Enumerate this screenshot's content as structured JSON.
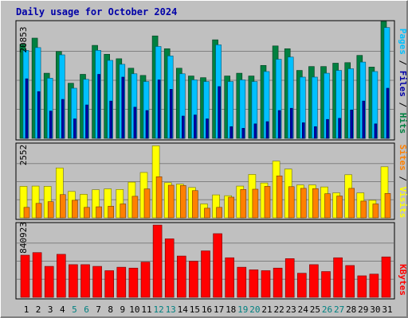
{
  "chart_data": {
    "type": "bar",
    "title": "Daily usage for October 2024",
    "categories": [
      "1",
      "2",
      "3",
      "4",
      "5",
      "6",
      "7",
      "8",
      "9",
      "10",
      "11",
      "12",
      "13",
      "14",
      "15",
      "16",
      "17",
      "18",
      "19",
      "20",
      "21",
      "22",
      "23",
      "24",
      "25",
      "26",
      "27",
      "28",
      "29",
      "30",
      "31"
    ],
    "weekend_days": [
      "5",
      "6",
      "12",
      "13",
      "19",
      "20",
      "26",
      "27"
    ],
    "colors": {
      "background": "#c0c0c0",
      "hits": "#008040",
      "files": "#00c0ff",
      "pages": "#0000a8",
      "visits": "#ffff00",
      "sites": "#ff8000",
      "kbytes": "#ff0000",
      "weekday_label": "#000000",
      "weekend_label": "#008080"
    },
    "panels": [
      {
        "id": "hits",
        "max_label": "20853",
        "ylim": [
          0,
          20853
        ],
        "side_labels": [
          {
            "text": "Pages",
            "color": "#00c0ff"
          },
          {
            "text": " / ",
            "color": "#000000"
          },
          {
            "text": "Files",
            "color": "#0000a8"
          },
          {
            "text": " / ",
            "color": "#000000"
          },
          {
            "text": "Hits",
            "color": "#008040"
          }
        ],
        "series": [
          {
            "name": "Hits",
            "values": [
              16900,
              18000,
              11700,
              15600,
              9900,
              11500,
              16700,
              15100,
              14300,
              12600,
              11300,
              18400,
              16100,
              12600,
              11200,
              10900,
              17700,
              11200,
              11700,
              11200,
              13100,
              16600,
              16100,
              12200,
              12900,
              12900,
              13500,
              13600,
              14900,
              12800,
              21000
            ]
          },
          {
            "name": "Files",
            "values": [
              15800,
              16300,
              10800,
              15000,
              9000,
              10600,
              15800,
              14000,
              13300,
              11600,
              10200,
              16500,
              14800,
              11600,
              10500,
              10200,
              16800,
              10200,
              10500,
              10200,
              12000,
              14200,
              14600,
              11000,
              11000,
              11700,
              12200,
              12500,
              13700,
              12000,
              19900
            ]
          },
          {
            "name": "Pages",
            "values": [
              10700,
              8400,
              4900,
              7000,
              3500,
              6000,
              11500,
              6700,
              11000,
              5600,
              5000,
              10500,
              8800,
              4000,
              4200,
              3500,
              9300,
              2100,
              1800,
              2600,
              3000,
              5000,
              5400,
              2800,
              2100,
              3400,
              3600,
              5100,
              6700,
              2600,
              9000
            ]
          }
        ]
      },
      {
        "id": "visits",
        "max_label": "2552",
        "ylim": [
          0,
          2552
        ],
        "side_labels": [
          {
            "text": "Sites",
            "color": "#ff8000"
          },
          {
            "text": " / ",
            "color": "#000000"
          },
          {
            "text": "Visits",
            "color": "#ffff00"
          }
        ],
        "series": [
          {
            "name": "Visits",
            "values": [
              1110,
              1120,
              1110,
              1760,
              930,
              830,
              990,
              1020,
              1000,
              1260,
              1600,
              2540,
              1240,
              1190,
              1070,
              490,
              810,
              780,
              1120,
              1530,
              1230,
              2000,
              1720,
              1160,
              1160,
              1090,
              880,
              1520,
              880,
              620,
              1800
            ]
          },
          {
            "name": "Sites",
            "values": [
              370,
              510,
              570,
              820,
              620,
              370,
              390,
              410,
              490,
              760,
              1020,
              1450,
              1150,
              1140,
              960,
              340,
              370,
              730,
              1000,
              1010,
              1110,
              1480,
              1100,
              1040,
              1030,
              850,
              770,
              1040,
              590,
              490,
              860
            ]
          }
        ]
      },
      {
        "id": "kbytes",
        "max_label": "840923",
        "ylim": [
          0,
          840923
        ],
        "side_labels": [
          {
            "text": "KBytes",
            "color": "#ff0000"
          }
        ],
        "series": [
          {
            "name": "KBytes",
            "values": [
              490000,
              520000,
              360000,
              500000,
              380000,
              380000,
              360000,
              310000,
              350000,
              340000,
              410000,
              840000,
              680000,
              480000,
              420000,
              540000,
              740000,
              460000,
              350000,
              320000,
              310000,
              340000,
              450000,
              280000,
              380000,
              300000,
              460000,
              370000,
              250000,
              270000,
              470000
            ]
          }
        ]
      }
    ]
  }
}
